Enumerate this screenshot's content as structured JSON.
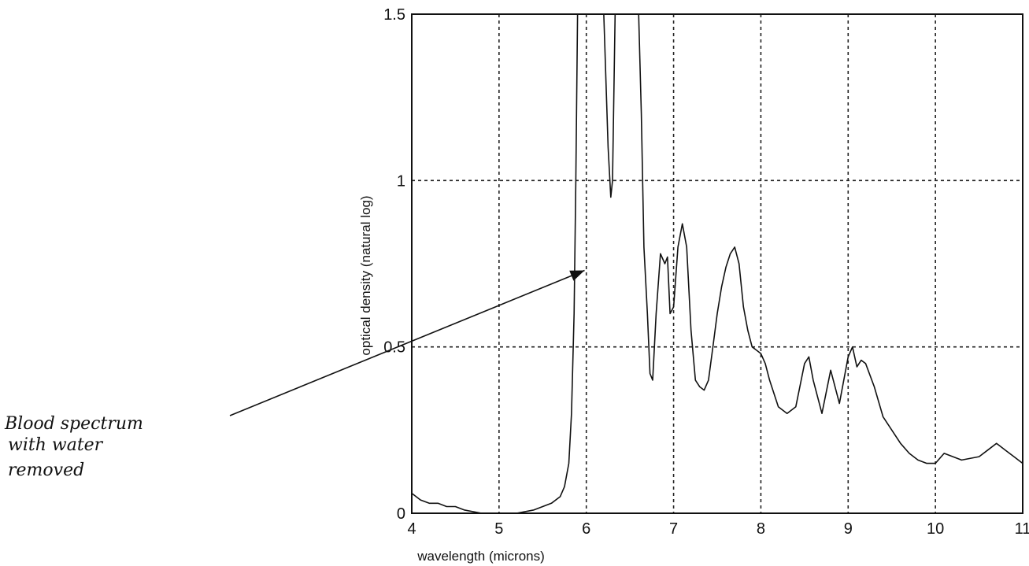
{
  "chart_data": {
    "type": "line",
    "title": "",
    "xlabel": "wavelength (microns)",
    "ylabel": "optical density (natural log)",
    "xlim": [
      4,
      11
    ],
    "ylim": [
      0,
      1.5
    ],
    "x_ticks": [
      4,
      5,
      6,
      7,
      8,
      9,
      10,
      11
    ],
    "y_ticks": [
      0,
      0.5,
      1,
      1.5
    ],
    "x_tick_labels": [
      "4",
      "5",
      "6",
      "7",
      "8",
      "9",
      "10",
      "11"
    ],
    "y_tick_labels": [
      "0",
      "0.5",
      "1",
      "1.5"
    ],
    "grid": true,
    "series": [
      {
        "x": [
          4.0,
          4.1,
          4.2,
          4.3,
          4.4,
          4.5,
          4.6,
          4.8,
          5.0,
          5.2,
          5.4,
          5.6,
          5.7,
          5.75,
          5.8,
          5.83,
          5.86,
          5.88,
          5.9,
          5.92,
          5.95,
          6.0,
          6.05,
          6.1,
          6.15,
          6.2,
          6.25,
          6.28,
          6.3,
          6.33,
          6.37,
          6.42,
          6.5,
          6.55,
          6.6,
          6.63,
          6.66,
          6.7,
          6.73,
          6.76,
          6.8,
          6.85,
          6.9,
          6.93,
          6.96,
          7.0,
          7.05,
          7.1,
          7.15,
          7.2,
          7.25,
          7.3,
          7.35,
          7.4,
          7.45,
          7.5,
          7.55,
          7.6,
          7.65,
          7.7,
          7.75,
          7.8,
          7.85,
          7.9,
          7.95,
          8.0,
          8.05,
          8.1,
          8.2,
          8.3,
          8.4,
          8.5,
          8.55,
          8.6,
          8.7,
          8.8,
          8.9,
          9.0,
          9.05,
          9.1,
          9.15,
          9.2,
          9.3,
          9.4,
          9.5,
          9.6,
          9.7,
          9.8,
          9.9,
          10.0,
          10.1,
          10.3,
          10.5,
          10.6,
          10.7,
          10.8,
          10.9,
          11.0
        ],
        "y": [
          0.06,
          0.04,
          0.03,
          0.03,
          0.02,
          0.02,
          0.01,
          0.0,
          0.0,
          0.0,
          0.01,
          0.03,
          0.05,
          0.08,
          0.15,
          0.3,
          0.6,
          1.0,
          1.5,
          1.5,
          1.5,
          1.5,
          1.5,
          1.5,
          1.5,
          1.5,
          1.1,
          0.95,
          1.0,
          1.5,
          1.5,
          1.5,
          1.5,
          1.5,
          1.5,
          1.2,
          0.8,
          0.6,
          0.42,
          0.4,
          0.6,
          0.78,
          0.75,
          0.77,
          0.6,
          0.62,
          0.8,
          0.87,
          0.8,
          0.55,
          0.4,
          0.38,
          0.37,
          0.4,
          0.5,
          0.6,
          0.68,
          0.74,
          0.78,
          0.8,
          0.75,
          0.62,
          0.55,
          0.5,
          0.49,
          0.48,
          0.45,
          0.4,
          0.32,
          0.3,
          0.32,
          0.45,
          0.47,
          0.4,
          0.3,
          0.43,
          0.33,
          0.47,
          0.5,
          0.44,
          0.46,
          0.45,
          0.38,
          0.29,
          0.25,
          0.21,
          0.18,
          0.16,
          0.15,
          0.15,
          0.18,
          0.16,
          0.17,
          0.19,
          0.21,
          0.19,
          0.17,
          0.15
        ]
      }
    ]
  },
  "annotation": {
    "text_lines": [
      "Blood spectrum",
      "with water",
      "removed"
    ],
    "arrow_target": {
      "x": 5.98,
      "y": 0.73
    }
  },
  "colors": {
    "line": "#111111",
    "frame": "#111111",
    "grid": "#222222"
  }
}
